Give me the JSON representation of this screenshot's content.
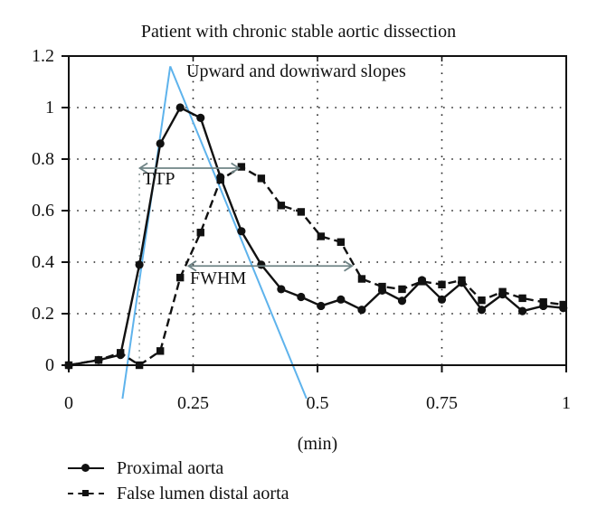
{
  "figure": {
    "title": "Patient with chronic stable aortic dissection",
    "xlabel": "(min)"
  },
  "chart_data": {
    "type": "line",
    "title": "Patient with chronic stable aortic dissection",
    "xlabel": "(min)",
    "ylabel": "",
    "xlim": [
      0,
      1
    ],
    "ylim": [
      0,
      1.2
    ],
    "x_ticks": [
      0,
      0.25,
      0.5,
      0.75,
      1
    ],
    "x_tick_labels": [
      "0",
      "0.25",
      "0.5",
      "0.75",
      "1"
    ],
    "y_ticks": [
      0,
      0.2,
      0.4,
      0.6,
      0.8,
      1,
      1.2
    ],
    "y_tick_labels": [
      "0",
      "0.2",
      "0.4",
      "0.6",
      "0.8",
      "1",
      "1.2"
    ],
    "top_ticks": [
      0.25,
      0.5,
      0.75
    ],
    "grid": {
      "style": "dotted",
      "h_lines": [
        0.2,
        0.4,
        0.6,
        0.8,
        1.0
      ],
      "v_lines": [
        0.25,
        0.5,
        0.75
      ]
    },
    "legend_position": "below-left",
    "line_color": "#111111",
    "x": [
      0,
      0.06,
      0.104,
      0.142,
      0.184,
      0.224,
      0.265,
      0.305,
      0.347,
      0.387,
      0.427,
      0.467,
      0.507,
      0.547,
      0.589,
      0.63,
      0.67,
      0.71,
      0.75,
      0.79,
      0.83,
      0.872,
      0.912,
      0.954,
      0.994
    ],
    "series": [
      {
        "name": "Proximal aorta",
        "line": "solid",
        "marker": "circle",
        "color": "#111111",
        "values": [
          0,
          0.02,
          0.04,
          0.39,
          0.86,
          1.0,
          0.96,
          0.73,
          0.52,
          0.39,
          0.295,
          0.265,
          0.23,
          0.255,
          0.215,
          0.29,
          0.25,
          0.33,
          0.255,
          0.32,
          0.215,
          0.275,
          0.21,
          0.23,
          0.222
        ]
      },
      {
        "name": "False lumen distal aorta",
        "line": "dashed",
        "marker": "square",
        "color": "#111111",
        "values": [
          0,
          0.02,
          0.048,
          0.0,
          0.055,
          0.34,
          0.515,
          0.72,
          0.77,
          0.725,
          0.62,
          0.595,
          0.5,
          0.478,
          0.335,
          0.305,
          0.295,
          0.325,
          0.313,
          0.33,
          0.252,
          0.285,
          0.26,
          0.245,
          0.235
        ]
      }
    ],
    "annotations": {
      "slopes_label": "Upward and downward slopes",
      "slope_lines_color": "#5eb3ec",
      "upward_line": {
        "x1": 0.108,
        "y1": -0.13,
        "x2": 0.204,
        "y2": 1.16
      },
      "downward_line": {
        "x1": 0.204,
        "y1": 1.16,
        "x2": 0.478,
        "y2": -0.13
      },
      "arrow_color": "#6f8486",
      "ttp": {
        "label": "TTP",
        "y": 0.765,
        "x1": 0.142,
        "x2": 0.343
      },
      "fwhm": {
        "label": "FWHM",
        "y": 0.385,
        "x1": 0.24,
        "x2": 0.57
      },
      "onset_vline": {
        "x": 0.142,
        "y1": 0,
        "y2": 0.765,
        "color": "#8a9898"
      }
    }
  }
}
